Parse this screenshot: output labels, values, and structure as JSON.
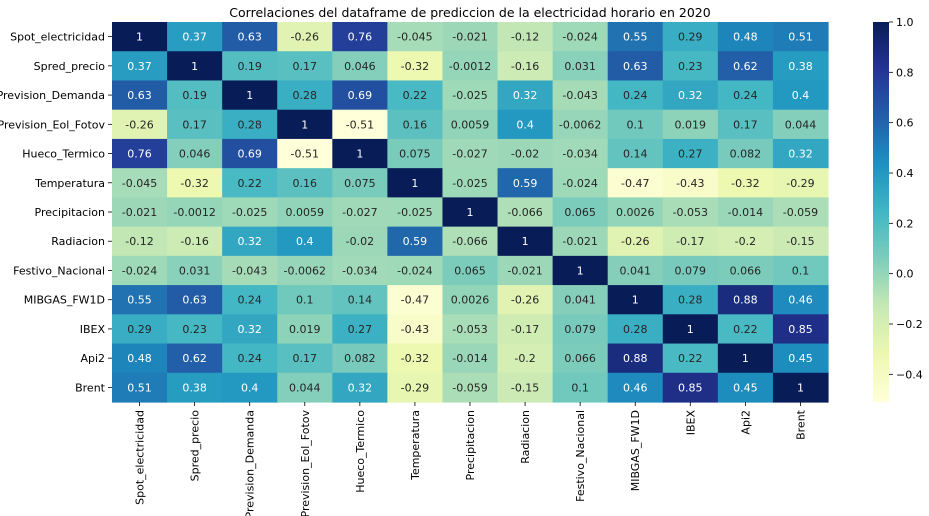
{
  "chart_data": {
    "type": "heatmap",
    "title": "Correlaciones del dataframe de prediccion de la electricidad horario en 2020",
    "labels": [
      "Spot_electricidad",
      "Spred_precio",
      "Prevision_Demanda",
      "Prevision_Eol_Fotov",
      "Hueco_Termico",
      "Temperatura",
      "Precipitacion",
      "Radiacion",
      "Festivo_Nacional",
      "MIBGAS_FW1D",
      "IBEX",
      "Api2",
      "Brent"
    ],
    "values": [
      [
        "1",
        "0.37",
        "0.63",
        "-0.26",
        "0.76",
        "-0.045",
        "-0.021",
        "-0.12",
        "-0.024",
        "0.55",
        "0.29",
        "0.48",
        "0.51"
      ],
      [
        "0.37",
        "1",
        "0.19",
        "0.17",
        "0.046",
        "-0.32",
        "-0.0012",
        "-0.16",
        "0.031",
        "0.63",
        "0.23",
        "0.62",
        "0.38"
      ],
      [
        "0.63",
        "0.19",
        "1",
        "0.28",
        "0.69",
        "0.22",
        "-0.025",
        "0.32",
        "-0.043",
        "0.24",
        "0.32",
        "0.24",
        "0.4"
      ],
      [
        "-0.26",
        "0.17",
        "0.28",
        "1",
        "-0.51",
        "0.16",
        "0.0059",
        "0.4",
        "-0.0062",
        "0.1",
        "0.019",
        "0.17",
        "0.044"
      ],
      [
        "0.76",
        "0.046",
        "0.69",
        "-0.51",
        "1",
        "0.075",
        "-0.027",
        "-0.02",
        "-0.034",
        "0.14",
        "0.27",
        "0.082",
        "0.32"
      ],
      [
        "-0.045",
        "-0.32",
        "0.22",
        "0.16",
        "0.075",
        "1",
        "-0.025",
        "0.59",
        "-0.024",
        "-0.47",
        "-0.43",
        "-0.32",
        "-0.29"
      ],
      [
        "-0.021",
        "-0.0012",
        "-0.025",
        "0.0059",
        "-0.027",
        "-0.025",
        "1",
        "-0.066",
        "0.065",
        "0.0026",
        "-0.053",
        "-0.014",
        "-0.059"
      ],
      [
        "-0.12",
        "-0.16",
        "0.32",
        "0.4",
        "-0.02",
        "0.59",
        "-0.066",
        "1",
        "-0.021",
        "-0.26",
        "-0.17",
        "-0.2",
        "-0.15"
      ],
      [
        "-0.024",
        "0.031",
        "-0.043",
        "-0.0062",
        "-0.034",
        "-0.024",
        "0.065",
        "-0.021",
        "1",
        "0.041",
        "0.079",
        "0.066",
        "0.1"
      ],
      [
        "0.55",
        "0.63",
        "0.24",
        "0.1",
        "0.14",
        "-0.47",
        "0.0026",
        "-0.26",
        "0.041",
        "1",
        "0.28",
        "0.88",
        "0.46"
      ],
      [
        "0.29",
        "0.23",
        "0.32",
        "0.019",
        "0.27",
        "-0.43",
        "-0.053",
        "-0.17",
        "0.079",
        "0.28",
        "1",
        "0.22",
        "0.85"
      ],
      [
        "0.48",
        "0.62",
        "0.24",
        "0.17",
        "0.082",
        "-0.32",
        "-0.014",
        "-0.2",
        "0.066",
        "0.88",
        "0.22",
        "1",
        "0.45"
      ],
      [
        "0.51",
        "0.38",
        "0.4",
        "0.044",
        "0.32",
        "-0.29",
        "-0.059",
        "-0.15",
        "0.1",
        "0.46",
        "0.85",
        "0.45",
        "1"
      ]
    ],
    "colormap": "YlGnBu",
    "vmin": -0.51,
    "vmax": 1.0,
    "colorbar_ticks": [
      "1.0",
      "0.8",
      "0.6",
      "0.4",
      "0.2",
      "0.0",
      "−0.2",
      "−0.4"
    ],
    "colorbar_tick_values": [
      1.0,
      0.8,
      0.6,
      0.4,
      0.2,
      0.0,
      -0.2,
      -0.4
    ],
    "annotation_dark_text": "#262626",
    "annotation_light_text": "#ffffff"
  }
}
